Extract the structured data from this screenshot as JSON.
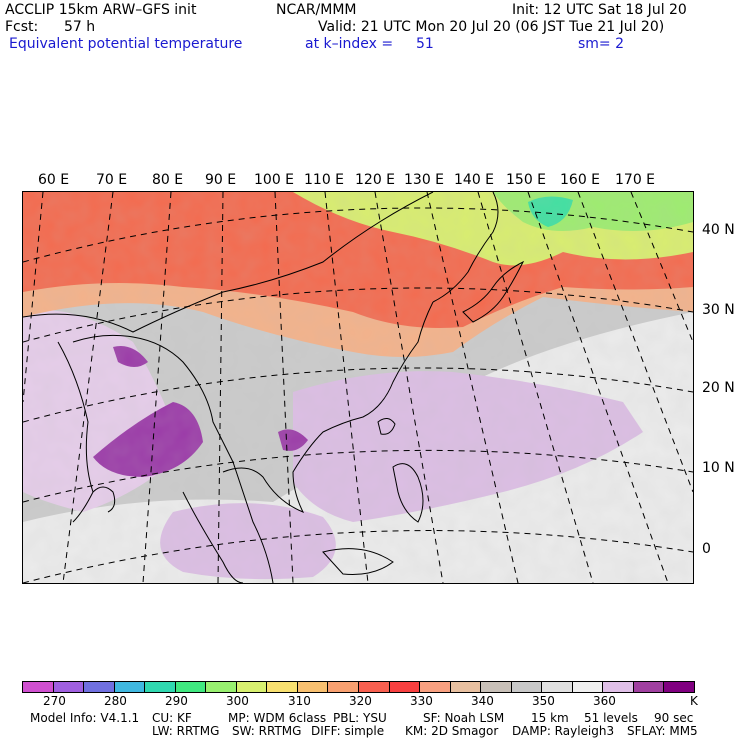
{
  "header": {
    "model": "ACCLIP 15km ARW–GFS init",
    "org": "NCAR/MMM",
    "init": "Init: 12 UTC Sat 18 Jul 20",
    "fcst_label": "Fcst:",
    "fcst_value": "57 h",
    "valid": "Valid: 21 UTC Mon 20 Jul 20 (06 JST Tue 21 Jul 20)",
    "field": "Equivalent potential temperature",
    "level": "at k–index =",
    "level_value": "51",
    "smooth": "sm= 2"
  },
  "map": {
    "lon_labels": [
      "60 E",
      "70 E",
      "80 E",
      "90 E",
      "100 E",
      "110 E",
      "120 E",
      "130 E",
      "140 E",
      "150 E",
      "160 E",
      "170 E"
    ],
    "lat_labels": [
      "40 N",
      "30 N",
      "20 N",
      "10 N",
      "0"
    ],
    "land_outline_color": "#000000",
    "grid_line_style": "dashed"
  },
  "colorbar": {
    "colors": [
      "#d050d0",
      "#a060e0",
      "#7070e0",
      "#40b8e0",
      "#30d8b0",
      "#40e880",
      "#98f070",
      "#d8f070",
      "#f8e070",
      "#f8c070",
      "#f8a070",
      "#f86050",
      "#f84040",
      "#f8a080",
      "#e8c0a0",
      "#c8c0b8",
      "#c8c8c8",
      "#e0e0e0",
      "#f0f0f0",
      "#e0c0e8",
      "#a040a0",
      "#800080"
    ],
    "labels": [
      "270",
      "280",
      "290",
      "300",
      "310",
      "320",
      "330",
      "340",
      "350",
      "360"
    ],
    "unit": "K"
  },
  "footer": {
    "line1": [
      "Model Info: V4.1.1",
      "CU: KF",
      "MP: WDM 6class",
      "PBL: YSU",
      "SF: Noah LSM",
      "15 km",
      "51 levels",
      "90 sec"
    ],
    "line2": [
      "LW: RRTMG",
      "SW: RRTMG",
      "DIFF: simple",
      "KM: 2D Smagor",
      "DAMP: Rayleigh3",
      "SFLAY: MM5"
    ]
  }
}
